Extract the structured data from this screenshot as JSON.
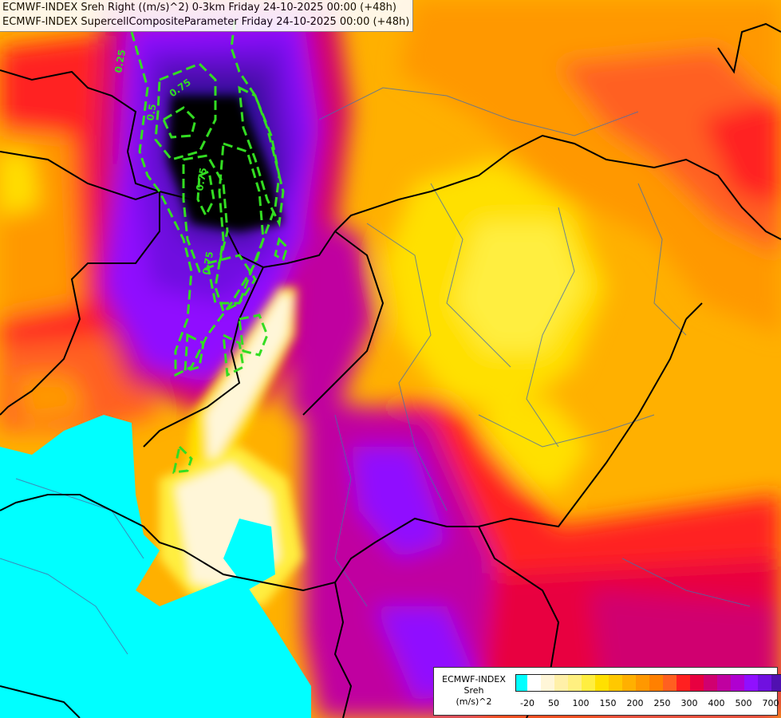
{
  "titles": [
    "ECMWF-INDEX Sreh Right ((m/s)^2) 0-3km Friday 24-10-2025 00:00 (+48h)",
    "ECMWF-INDEX SupercellCompositeParameter Friday 24-10-2025 00:00 (+48h)"
  ],
  "legend": {
    "model": "ECMWF-INDEX",
    "variable": "Sreh",
    "unit": "(m/s)^2",
    "colors": [
      "#00ffff",
      "#ffffff",
      "#fff6d8",
      "#fff0a8",
      "#fff080",
      "#ffee40",
      "#ffe000",
      "#ffc800",
      "#ffb000",
      "#ff9800",
      "#ff8000",
      "#ff6020",
      "#ff2020",
      "#e80040",
      "#d00070",
      "#c000a0",
      "#b000d0",
      "#9010ff",
      "#7010e0",
      "#5010b0",
      "#201090"
    ],
    "tick_labels": [
      "-20",
      "50",
      "100",
      "150",
      "200",
      "250",
      "300",
      "400",
      "500",
      "700"
    ]
  },
  "scp_contour_labels": [
    "0.25",
    "0.5",
    "0.75",
    "0.75",
    "0.75"
  ]
}
